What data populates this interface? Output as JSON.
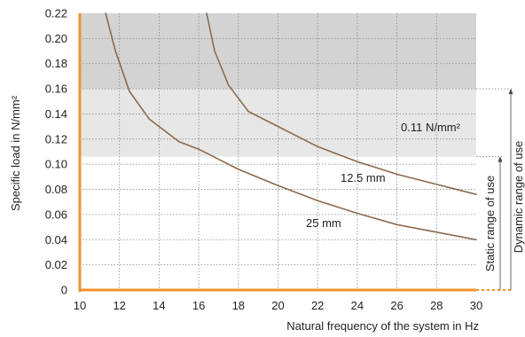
{
  "chart_data": {
    "type": "line",
    "ylabel": "Specific load in N/mm²",
    "xlabel": "Natural frequency of the system in Hz",
    "xlim": [
      10,
      30
    ],
    "ylim": [
      0,
      0.22
    ],
    "x_ticks": [
      "10",
      "12",
      "14",
      "16",
      "18",
      "20",
      "22",
      "24",
      "26",
      "28",
      "30"
    ],
    "y_ticks": [
      "0",
      "0.02",
      "0.04",
      "0.06",
      "0.08",
      "0.10",
      "0.12",
      "0.14",
      "0.16",
      "0.18",
      "0.20",
      "0.22"
    ],
    "grid": true,
    "bands": [
      {
        "name": "static",
        "from": 0.106,
        "to": 0.16,
        "color": "#e7e7e7"
      },
      {
        "name": "dynamic",
        "from": 0.16,
        "to": 0.22,
        "color": "#d3d3d3"
      }
    ],
    "annotations": {
      "threshold": "0.11 N/mm²",
      "static_range": "Static range of use",
      "dynamic_range": "Dynamic range of use"
    },
    "series": [
      {
        "name": "12.5 mm",
        "color": "#8b6b4f",
        "x": [
          16.4,
          16.8,
          17.5,
          18.5,
          20,
          22,
          24,
          26,
          28,
          30
        ],
        "values": [
          0.22,
          0.19,
          0.163,
          0.142,
          0.13,
          0.114,
          0.102,
          0.092,
          0.084,
          0.076
        ]
      },
      {
        "name": "25 mm",
        "color": "#8b6b4f",
        "x": [
          11.3,
          11.8,
          12.5,
          13.5,
          15,
          16,
          18,
          20,
          22,
          24,
          26,
          28,
          30
        ],
        "values": [
          0.22,
          0.19,
          0.158,
          0.136,
          0.118,
          0.112,
          0.096,
          0.083,
          0.071,
          0.061,
          0.052,
          0.046,
          0.04
        ]
      }
    ]
  }
}
